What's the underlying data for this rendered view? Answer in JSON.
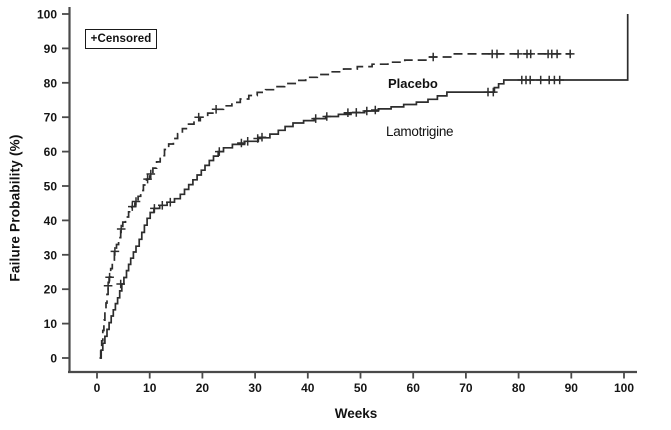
{
  "figure": {
    "legend_label": "+Censored",
    "xlabel": "Weeks",
    "ylabel": "Failure Probability (%)"
  },
  "chart_data": {
    "type": "line",
    "subtype": "kaplan-meier-step",
    "title": "",
    "xlabel": "Weeks",
    "ylabel": "Failure Probability (%)",
    "xlim": [
      0,
      102
    ],
    "ylim": [
      0,
      100
    ],
    "grid": false,
    "xticks": [
      0,
      10,
      20,
      30,
      40,
      50,
      60,
      70,
      80,
      90,
      100
    ],
    "yticks": [
      0,
      10,
      20,
      30,
      40,
      50,
      60,
      70,
      80,
      90,
      100
    ],
    "legend": {
      "label": "+Censored",
      "position": "top-left",
      "censor_symbol": "+"
    },
    "series": [
      {
        "name": "Placebo",
        "line_style": "dashed",
        "label_position_data_coords": [
          55,
          80
        ],
        "points": [
          [
            0.5,
            0
          ],
          [
            0.7,
            2.5
          ],
          [
            0.9,
            5
          ],
          [
            1.1,
            8
          ],
          [
            1.3,
            11
          ],
          [
            1.5,
            13.5
          ],
          [
            1.7,
            16
          ],
          [
            1.9,
            18.5
          ],
          [
            2.1,
            21
          ],
          [
            2.3,
            23.5
          ],
          [
            2.6,
            26
          ],
          [
            2.9,
            28.5
          ],
          [
            3.3,
            31
          ],
          [
            3.7,
            33
          ],
          [
            4.1,
            35
          ],
          [
            4.5,
            37.5
          ],
          [
            4.9,
            39.5
          ],
          [
            5.4,
            41
          ],
          [
            6.0,
            42.5
          ],
          [
            6.6,
            44
          ],
          [
            7.2,
            45.5
          ],
          [
            7.8,
            47
          ],
          [
            8.3,
            48.7
          ],
          [
            8.8,
            50.3
          ],
          [
            9.4,
            52
          ],
          [
            10.0,
            53.5
          ],
          [
            10.6,
            55.2
          ],
          [
            11.3,
            57
          ],
          [
            12.0,
            58.8
          ],
          [
            12.8,
            60.6
          ],
          [
            13.6,
            62.2
          ],
          [
            14.5,
            63.8
          ],
          [
            15.3,
            65.2
          ],
          [
            16.2,
            66.7
          ],
          [
            17.2,
            68
          ],
          [
            18.4,
            69
          ],
          [
            19.6,
            70
          ],
          [
            21.0,
            71.2
          ],
          [
            22.4,
            72.3
          ],
          [
            24.0,
            73.3
          ],
          [
            25.6,
            74.3
          ],
          [
            27.2,
            75.3
          ],
          [
            28.8,
            76.3
          ],
          [
            30.4,
            77.2
          ],
          [
            32.0,
            78
          ],
          [
            33.8,
            78.9
          ],
          [
            35.6,
            79.8
          ],
          [
            37.6,
            80.7
          ],
          [
            39.6,
            81.6
          ],
          [
            41.8,
            82.4
          ],
          [
            44.2,
            83.2
          ],
          [
            46.8,
            84
          ],
          [
            49.4,
            84.7
          ],
          [
            52.2,
            85.4
          ],
          [
            55.2,
            86
          ],
          [
            58.4,
            86.6
          ],
          [
            62.6,
            87.5
          ],
          [
            67.6,
            88.4
          ],
          [
            90,
            88.4
          ]
        ],
        "censor_marks": [
          [
            2.1,
            21
          ],
          [
            2.4,
            23.5
          ],
          [
            3.4,
            31
          ],
          [
            4.6,
            37.5
          ],
          [
            6.7,
            44
          ],
          [
            7.4,
            45.5
          ],
          [
            9.6,
            52
          ],
          [
            10.2,
            53.5
          ],
          [
            19.3,
            70
          ],
          [
            22.6,
            72.3
          ],
          [
            63.8,
            87.5
          ],
          [
            75.0,
            88.4
          ],
          [
            75.9,
            88.4
          ],
          [
            79.9,
            88.4
          ],
          [
            81.6,
            88.4
          ],
          [
            82.3,
            88.4
          ],
          [
            85.6,
            88.4
          ],
          [
            86.3,
            88.4
          ],
          [
            87.3,
            88.4
          ],
          [
            89.8,
            88.4
          ]
        ]
      },
      {
        "name": "Lamotrigine",
        "line_style": "solid",
        "label_position_data_coords": [
          55,
          66
        ],
        "points": [
          [
            0.5,
            0
          ],
          [
            0.8,
            2.3
          ],
          [
            1.1,
            4.3
          ],
          [
            1.5,
            6.3
          ],
          [
            1.9,
            8.3
          ],
          [
            2.3,
            10.3
          ],
          [
            2.7,
            12.2
          ],
          [
            3.1,
            14
          ],
          [
            3.5,
            15.8
          ],
          [
            3.9,
            17.5
          ],
          [
            4.3,
            19.5
          ],
          [
            4.7,
            21.5
          ],
          [
            5.1,
            23.4
          ],
          [
            5.6,
            25.4
          ],
          [
            6.0,
            27.2
          ],
          [
            6.4,
            29
          ],
          [
            6.9,
            30.8
          ],
          [
            7.4,
            32.5
          ],
          [
            8.0,
            34.5
          ],
          [
            8.5,
            36.5
          ],
          [
            9.0,
            38.6
          ],
          [
            9.5,
            40.6
          ],
          [
            10.1,
            42.3
          ],
          [
            10.8,
            43.5
          ],
          [
            11.9,
            44.4
          ],
          [
            13.3,
            45.3
          ],
          [
            14.7,
            46.3
          ],
          [
            15.8,
            47.6
          ],
          [
            16.6,
            49
          ],
          [
            17.4,
            50.4
          ],
          [
            18.2,
            51.8
          ],
          [
            19.0,
            53.2
          ],
          [
            19.8,
            54.6
          ],
          [
            20.5,
            56
          ],
          [
            21.3,
            57.4
          ],
          [
            22.1,
            58.7
          ],
          [
            23.0,
            60
          ],
          [
            24.0,
            61.1
          ],
          [
            25.7,
            62.1
          ],
          [
            28.0,
            63
          ],
          [
            30.6,
            64
          ],
          [
            32.8,
            65.1
          ],
          [
            34.4,
            66.2
          ],
          [
            35.7,
            67.3
          ],
          [
            37.2,
            68.3
          ],
          [
            39.2,
            69
          ],
          [
            41.2,
            69.6
          ],
          [
            43.4,
            70.2
          ],
          [
            45.8,
            70.8
          ],
          [
            48.2,
            71.3
          ],
          [
            50.8,
            71.8
          ],
          [
            53.4,
            72.4
          ],
          [
            55.8,
            73
          ],
          [
            58.2,
            73.7
          ],
          [
            60.6,
            74.4
          ],
          [
            62.8,
            75.2
          ],
          [
            64.6,
            76.2
          ],
          [
            66.4,
            77.3
          ],
          [
            75.4,
            78.6
          ],
          [
            76.2,
            79.7
          ],
          [
            77.2,
            80.8
          ],
          [
            100.7,
            100
          ]
        ],
        "censor_marks": [
          [
            4.5,
            21.5
          ],
          [
            10.9,
            43.5
          ],
          [
            12.4,
            44.4
          ],
          [
            13.9,
            45.3
          ],
          [
            23.2,
            60
          ],
          [
            27.4,
            62.5
          ],
          [
            28.6,
            63
          ],
          [
            30.5,
            63.8
          ],
          [
            31.3,
            64.2
          ],
          [
            41.5,
            69.6
          ],
          [
            43.6,
            70.2
          ],
          [
            47.6,
            71.3
          ],
          [
            49.2,
            71.4
          ],
          [
            51.2,
            71.8
          ],
          [
            52.8,
            72.1
          ],
          [
            74.2,
            77.3
          ],
          [
            75.2,
            77.3
          ],
          [
            80.6,
            80.8
          ],
          [
            81.4,
            80.8
          ],
          [
            82.2,
            80.8
          ],
          [
            84.2,
            80.8
          ],
          [
            85.8,
            80.8
          ],
          [
            86.8,
            80.8
          ],
          [
            87.8,
            80.8
          ]
        ]
      }
    ]
  }
}
